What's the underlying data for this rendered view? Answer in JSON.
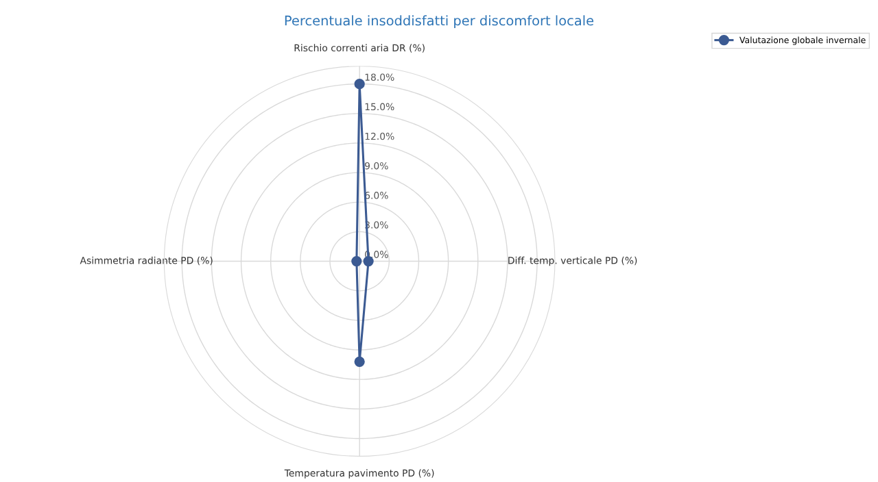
{
  "chart_data": {
    "type": "radar",
    "title": "Percentuale insoddisfatti per discomfort locale",
    "categories": [
      "Rischio correnti aria DR (%)",
      "Diff. temp. verticale PD (%)",
      "Temperatura pavimento PD (%)",
      "Asimmetria radiante PD (%)"
    ],
    "series": [
      {
        "name": "Valutazione globale invernale",
        "color": "#3b5a92",
        "values": [
          18.0,
          0.9,
          10.2,
          0.3
        ]
      }
    ],
    "ylim": [
      0,
      19.8
    ],
    "yticks": [
      {
        "value": 0,
        "label": "0.0%"
      },
      {
        "value": 3,
        "label": "3.0%"
      },
      {
        "value": 6,
        "label": "6.0%"
      },
      {
        "value": 9,
        "label": "9.0%"
      },
      {
        "value": 12,
        "label": "12.0%"
      },
      {
        "value": 15,
        "label": "15.0%"
      },
      {
        "value": 18,
        "label": "18.0%"
      }
    ],
    "grid": true,
    "legend": "top right",
    "marker": "circle",
    "line_style": "solid"
  }
}
